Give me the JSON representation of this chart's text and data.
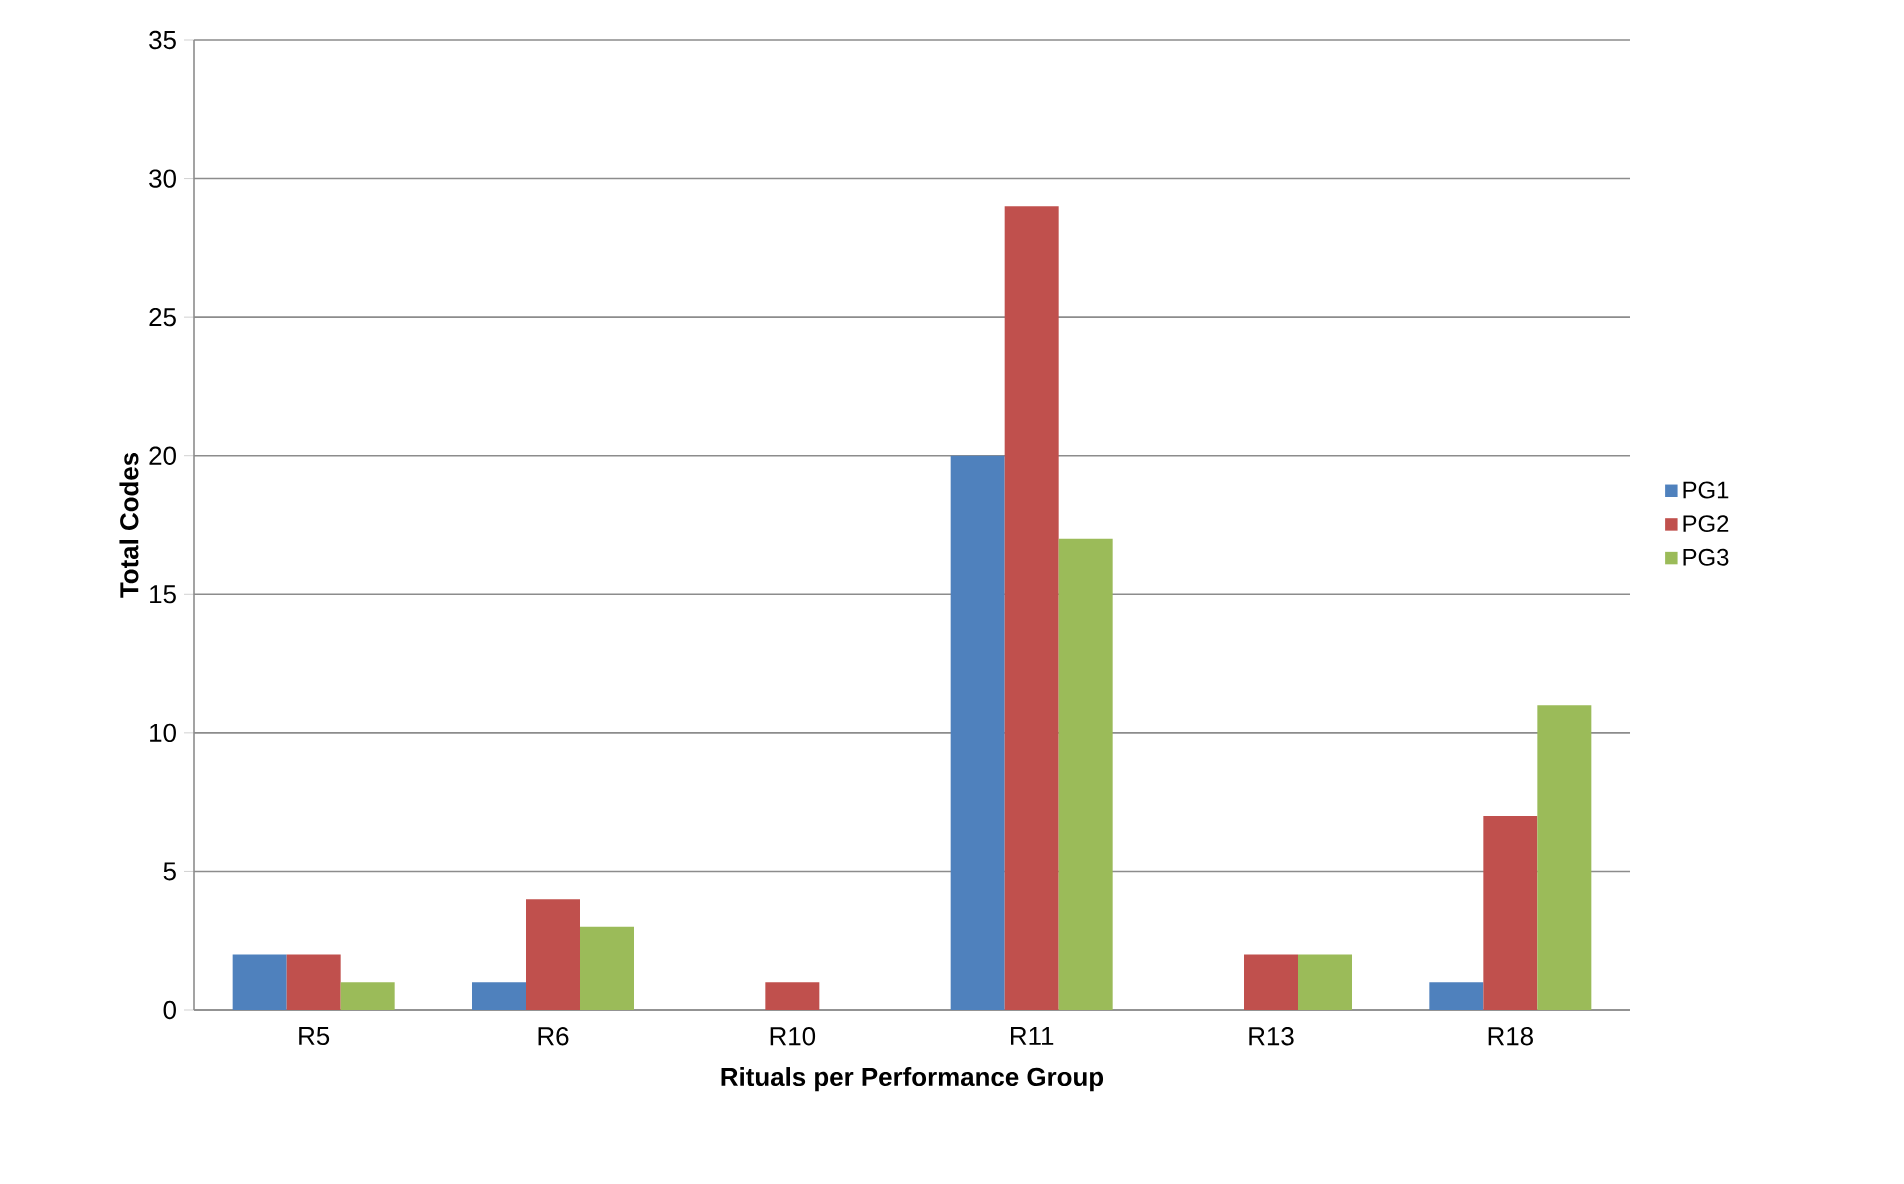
{
  "chart_data": {
    "type": "bar",
    "xlabel": "Rituals per Performance Group",
    "ylabel": "Total Codes",
    "categories": [
      "R5",
      "R6",
      "R10",
      "R11",
      "R13",
      "R18"
    ],
    "series": [
      {
        "name": "PG1",
        "color": "#4f81bd",
        "values": [
          2,
          1,
          0,
          20,
          0,
          1
        ]
      },
      {
        "name": "PG2",
        "color": "#c0504d",
        "values": [
          2,
          4,
          1,
          29,
          2,
          7
        ]
      },
      {
        "name": "PG3",
        "color": "#9bbb59",
        "values": [
          1,
          3,
          0,
          17,
          2,
          11
        ]
      }
    ],
    "ylim": [
      0,
      35
    ],
    "yticks": [
      0,
      5,
      10,
      15,
      20,
      25,
      30,
      35
    ],
    "grid": "y",
    "legend": "right"
  }
}
